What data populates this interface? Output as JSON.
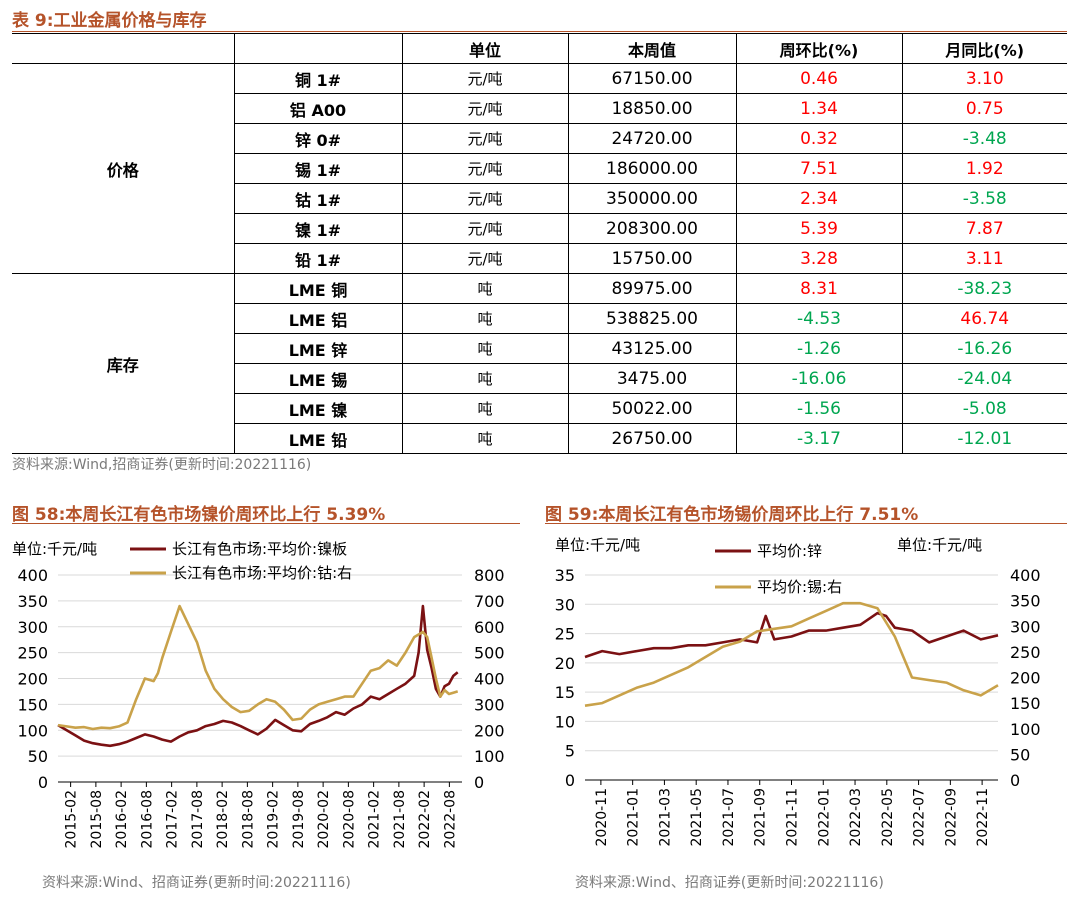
{
  "table": {
    "title": "表 9:工业金属价格与库存",
    "headers": [
      "",
      "",
      "单位",
      "本周值",
      "周环比(%)",
      "月同比(%)"
    ],
    "groups": [
      {
        "label": "价格",
        "rows": [
          {
            "name": "铜 1#",
            "unit": "元/吨",
            "value": "67150.00",
            "wow": "0.46",
            "mom": "3.10"
          },
          {
            "name": "铝 A00",
            "unit": "元/吨",
            "value": "18850.00",
            "wow": "1.34",
            "mom": "0.75"
          },
          {
            "name": "锌 0#",
            "unit": "元/吨",
            "value": "24720.00",
            "wow": "0.32",
            "mom": "-3.48"
          },
          {
            "name": "锡 1#",
            "unit": "元/吨",
            "value": "186000.00",
            "wow": "7.51",
            "mom": "1.92"
          },
          {
            "name": "钴 1#",
            "unit": "元/吨",
            "value": "350000.00",
            "wow": "2.34",
            "mom": "-3.58"
          },
          {
            "name": "镍 1#",
            "unit": "元/吨",
            "value": "208300.00",
            "wow": "5.39",
            "mom": "7.87"
          },
          {
            "name": "铅 1#",
            "unit": "元/吨",
            "value": "15750.00",
            "wow": "3.28",
            "mom": "3.11"
          }
        ]
      },
      {
        "label": "库存",
        "rows": [
          {
            "name": "LME 铜",
            "unit": "吨",
            "value": "89975.00",
            "wow": "8.31",
            "mom": "-38.23"
          },
          {
            "name": "LME 铝",
            "unit": "吨",
            "value": "538825.00",
            "wow": "-4.53",
            "mom": "46.74"
          },
          {
            "name": "LME 锌",
            "unit": "吨",
            "value": "43125.00",
            "wow": "-1.26",
            "mom": "-16.26"
          },
          {
            "name": "LME 锡",
            "unit": "吨",
            "value": "3475.00",
            "wow": "-16.06",
            "mom": "-24.04"
          },
          {
            "name": "LME 镍",
            "unit": "吨",
            "value": "50022.00",
            "wow": "-1.56",
            "mom": "-5.08"
          },
          {
            "name": "LME 铅",
            "unit": "吨",
            "value": "26750.00",
            "wow": "-3.17",
            "mom": "-12.01"
          }
        ]
      }
    ],
    "source": "资料来源:Wind,招商证券(更新时间:20221116)"
  },
  "colors": {
    "title": "#b5532a",
    "up": "#ff0000",
    "down": "#00a650",
    "series_dark": "#7b1113",
    "series_gold": "#c9a24a"
  },
  "chart_data": [
    {
      "type": "line",
      "title": "图 58:本周长江有色市场镍价周环比上行 5.39%",
      "unit_label": "单位:千元/吨",
      "x_ticks": [
        "2015-02",
        "2015-08",
        "2016-02",
        "2016-08",
        "2017-02",
        "2017-08",
        "2018-02",
        "2018-08",
        "2019-02",
        "2019-08",
        "2020-02",
        "2020-08",
        "2021-02",
        "2021-08",
        "2022-02",
        "2022-08"
      ],
      "x_range": [
        0,
        93
      ],
      "ylim_left": [
        0,
        400
      ],
      "ylim_right": [
        0,
        800
      ],
      "y_ticks_left": [
        0,
        50,
        100,
        150,
        200,
        250,
        300,
        350,
        400
      ],
      "y_ticks_right": [
        0,
        100,
        200,
        300,
        400,
        500,
        600,
        700,
        800
      ],
      "series": [
        {
          "name": "长江有色市场:平均价:镍板",
          "axis": "left",
          "color": "#7b1113",
          "x": [
            0,
            2,
            4,
            6,
            8,
            10,
            12,
            14,
            16,
            18,
            20,
            22,
            24,
            26,
            28,
            30,
            32,
            34,
            36,
            38,
            40,
            42,
            44,
            46,
            48,
            50,
            52,
            54,
            56,
            58,
            60,
            62,
            64,
            66,
            68,
            70,
            72,
            74,
            76,
            78,
            80,
            82,
            83,
            84,
            85,
            86,
            87,
            88,
            89,
            90,
            91,
            92
          ],
          "values": [
            110,
            100,
            90,
            80,
            75,
            72,
            70,
            73,
            78,
            85,
            92,
            88,
            82,
            78,
            88,
            96,
            100,
            108,
            112,
            118,
            115,
            108,
            100,
            92,
            103,
            120,
            110,
            100,
            98,
            112,
            118,
            125,
            135,
            130,
            142,
            150,
            165,
            160,
            170,
            180,
            190,
            205,
            250,
            340,
            255,
            220,
            180,
            165,
            185,
            190,
            205,
            212
          ]
        },
        {
          "name": "长江有色市场:平均价:钴:右",
          "axis": "right",
          "color": "#c9a24a",
          "x": [
            0,
            2,
            4,
            6,
            8,
            10,
            12,
            14,
            16,
            18,
            20,
            22,
            23,
            24,
            25,
            26,
            28,
            30,
            32,
            34,
            36,
            38,
            40,
            42,
            44,
            46,
            48,
            50,
            52,
            54,
            56,
            58,
            60,
            62,
            64,
            66,
            68,
            70,
            72,
            74,
            76,
            78,
            80,
            82,
            83,
            84,
            85,
            86,
            87,
            88,
            89,
            90,
            91,
            92
          ],
          "values": [
            220,
            215,
            210,
            212,
            205,
            210,
            208,
            215,
            230,
            320,
            400,
            390,
            420,
            480,
            530,
            580,
            680,
            610,
            540,
            430,
            360,
            320,
            290,
            270,
            275,
            300,
            320,
            310,
            280,
            240,
            245,
            280,
            300,
            310,
            320,
            330,
            330,
            380,
            430,
            440,
            470,
            450,
            500,
            560,
            570,
            580,
            560,
            480,
            400,
            330,
            355,
            340,
            345,
            350
          ]
        }
      ],
      "legend_position": "top",
      "source": "资料来源:Wind、招商证券(更新时间:20221116)"
    },
    {
      "type": "line",
      "title": "图 59:本周长江有色市场锡价周环比上行 7.51%",
      "unit_label_left": "单位:千元/吨",
      "unit_label_right": "单位:千元/吨",
      "x_ticks": [
        "2020-11",
        "2021-01",
        "2021-03",
        "2021-05",
        "2021-07",
        "2021-09",
        "2021-11",
        "2022-01",
        "2022-03",
        "2022-05",
        "2022-07",
        "2022-09",
        "2022-11"
      ],
      "x_range": [
        0,
        24
      ],
      "ylim_left": [
        0,
        35
      ],
      "ylim_right": [
        0,
        400
      ],
      "y_ticks_left": [
        0,
        5,
        10,
        15,
        20,
        25,
        30,
        35
      ],
      "y_ticks_right": [
        0,
        50,
        100,
        150,
        200,
        250,
        300,
        350,
        400
      ],
      "series": [
        {
          "name": "平均价:锌",
          "axis": "left",
          "color": "#7b1113",
          "x": [
            0,
            1,
            2,
            3,
            4,
            5,
            6,
            7,
            8,
            9,
            10,
            10.5,
            11,
            12,
            13,
            14,
            15,
            16,
            17,
            17.5,
            18,
            19,
            20,
            21,
            22,
            23,
            24
          ],
          "values": [
            21,
            22,
            21.5,
            22,
            22.5,
            22.5,
            23,
            23,
            23.5,
            24,
            23.5,
            28,
            24,
            24.5,
            25.5,
            25.5,
            26,
            26.5,
            28.5,
            28,
            26,
            25.5,
            23.5,
            24.5,
            25.5,
            24,
            24.7
          ]
        },
        {
          "name": "平均价:锡:右",
          "axis": "right",
          "color": "#c9a24a",
          "x": [
            0,
            1,
            2,
            3,
            4,
            5,
            6,
            7,
            8,
            9,
            10,
            11,
            12,
            13,
            14,
            15,
            16,
            17,
            18,
            19,
            20,
            21,
            22,
            23,
            24
          ],
          "values": [
            145,
            150,
            165,
            180,
            190,
            205,
            220,
            240,
            260,
            270,
            290,
            295,
            300,
            315,
            330,
            345,
            345,
            335,
            280,
            200,
            195,
            190,
            175,
            165,
            185
          ]
        }
      ],
      "legend_position": "top",
      "source": "资料来源:Wind、招商证券(更新时间:20221116)"
    }
  ]
}
